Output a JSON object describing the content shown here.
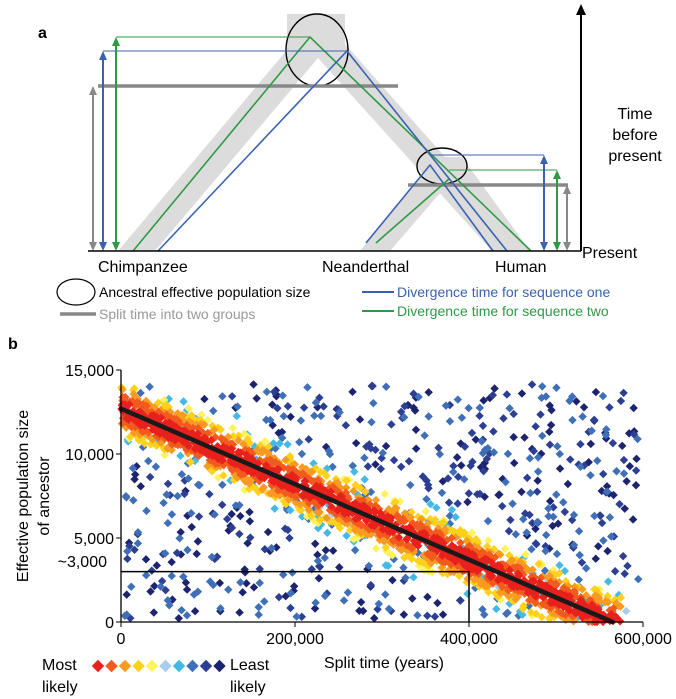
{
  "panel_a": {
    "label": "a",
    "labels": {
      "chimpanzee": "Chimpanzee",
      "neanderthal": "Neanderthal",
      "human": "Human",
      "present": "Present",
      "time_l1": "Time",
      "time_l2": "before",
      "time_l3": "present"
    },
    "legend": {
      "ancestral": "Ancestral effective population size",
      "split": "Split time into two groups",
      "seq_one": "Divergence time for sequence one",
      "seq_two": "Divergence time for sequence two"
    },
    "colors": {
      "seq_one": "#3b62b0",
      "seq_two": "#2e9a45",
      "split": "#888888",
      "shading": "#dcdcdc"
    }
  },
  "panel_b": {
    "label": "b",
    "xlabel": "Split time (years)",
    "ylabel_l1": "Effective population size",
    "ylabel_l2": "of ancestor",
    "ytick_extra": "~3,000",
    "legend_most_l1": "Most",
    "legend_most_l2": "likely",
    "legend_least_l1": "Least",
    "legend_least_l2": "likely",
    "likelihood_colors": [
      "#e8211c",
      "#f25a1e",
      "#f99b20",
      "#ffd11a",
      "#fff35c",
      "#a9cdec",
      "#45b9e6",
      "#3f6fb6",
      "#2c3f93",
      "#1c2470"
    ]
  },
  "chart_data": {
    "type": "scatter",
    "x": {
      "min": 0,
      "max": 600000,
      "ticks": [
        0,
        200000,
        400000,
        600000
      ],
      "tick_labels": [
        "0",
        "200,000",
        "400,000",
        "600,000"
      ],
      "label": "Split time (years)"
    },
    "y": {
      "min": 0,
      "max": 15000,
      "ticks": [
        0,
        5000,
        10000,
        15000
      ],
      "tick_labels": [
        "0",
        "5,000",
        "10,000",
        "15,000"
      ],
      "label": "Effective population size of ancestor"
    },
    "best_fit_line": [
      [
        0,
        12700
      ],
      [
        565000,
        0
      ]
    ],
    "highlight": {
      "x": 400000,
      "y": 3000
    },
    "color_scale": "likelihood (red = most likely, dark blue = least likely)"
  }
}
